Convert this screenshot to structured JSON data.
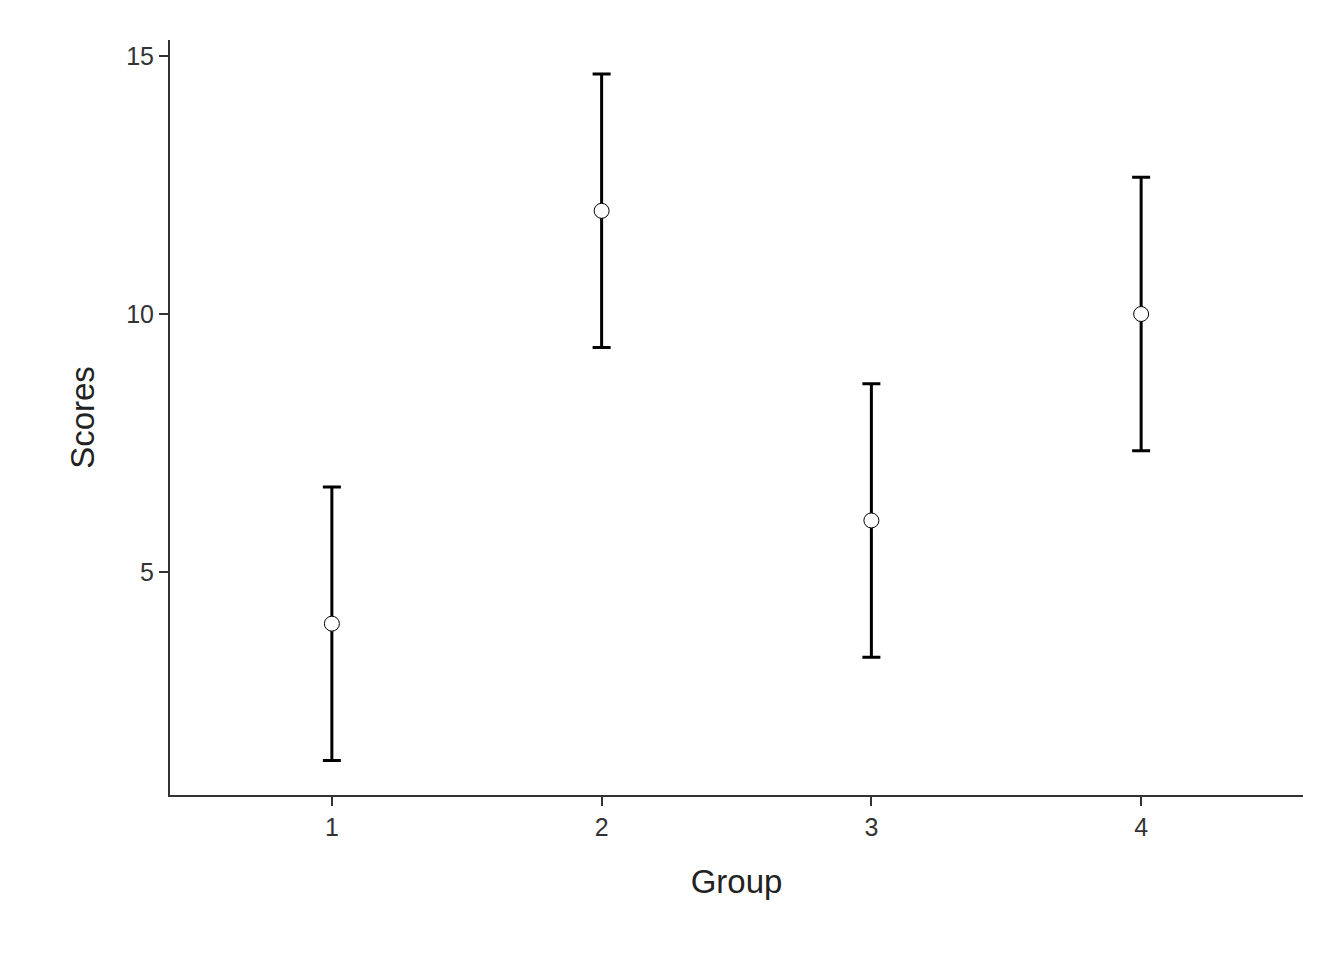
{
  "chart_data": {
    "type": "scatter",
    "x_label": "Group",
    "y_label": "Scores",
    "x": [
      1,
      2,
      3,
      4
    ],
    "values": [
      4,
      12,
      6,
      10
    ],
    "errors": [
      2.65,
      2.65,
      2.65,
      2.65
    ],
    "xlim": [
      0.4,
      4.6
    ],
    "xticks": [
      1,
      2,
      3,
      4
    ],
    "ylim": [
      0.68,
      15.31
    ],
    "yticks": [
      5,
      10,
      15
    ],
    "color": "#000000",
    "marker": "circle",
    "grid": false
  }
}
